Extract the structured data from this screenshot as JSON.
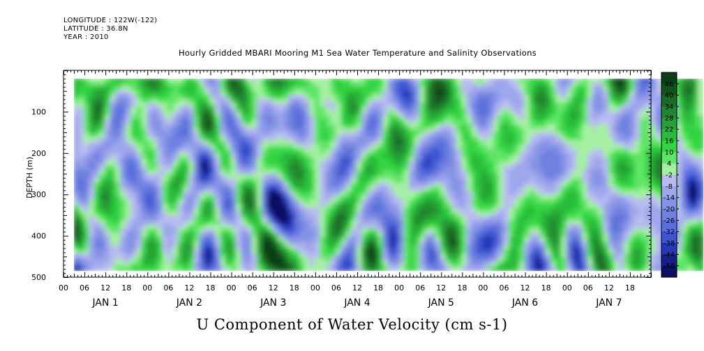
{
  "header": {
    "longitude": "LONGITUDE : 122W(-122)",
    "latitude": "LATITUDE : 36.8N",
    "year": "YEAR : 2010"
  },
  "chart_data": {
    "type": "heatmap",
    "title": "Hourly Gridded MBARI Mooring M1 Sea Water Temperature and Salinity Observations",
    "xlabel": "U Component of Water Velocity (cm s-1)",
    "ylabel": "DEPTH (m)",
    "ylim": [
      500,
      0
    ],
    "y_ticks": [
      100,
      200,
      300,
      400,
      500
    ],
    "y_tick_labels": [
      "100",
      "200",
      "300",
      "400",
      "500"
    ],
    "x_tick_labels": [
      "00",
      "06",
      "12",
      "18",
      "00",
      "06",
      "12",
      "18",
      "00",
      "06",
      "12",
      "18",
      "00",
      "06",
      "12",
      "18",
      "00",
      "06",
      "12",
      "18",
      "00",
      "06",
      "12",
      "18",
      "00",
      "06",
      "12",
      "18"
    ],
    "day_labels": [
      "JAN  1",
      "JAN  2",
      "JAN  3",
      "JAN  4",
      "JAN  5",
      "JAN  6",
      "JAN  7"
    ],
    "data_extent": {
      "x_start_hour": 3,
      "x_end_hour": 183,
      "depth_top": 20,
      "depth_bottom": 485
    },
    "colorbar": {
      "labels": [
        "46",
        "40",
        "34",
        "28",
        "22",
        "16",
        "10",
        "4",
        "-2",
        "-8",
        "-14",
        "-20",
        "-26",
        "-32",
        "-38",
        "-44",
        "-50"
      ],
      "colors": [
        "#0b3d16",
        "#13521e",
        "#1b6a27",
        "#22852f",
        "#27a035",
        "#2bbb3b",
        "#33d443",
        "#5ee566",
        "#a4f0a2",
        "#b8bcf0",
        "#9ea6ec",
        "#8593e6",
        "#6f80e0",
        "#5a6fdc",
        "#3e55d2",
        "#2538b8",
        "#161f8c",
        "#0c0f63"
      ]
    },
    "grid": false
  }
}
